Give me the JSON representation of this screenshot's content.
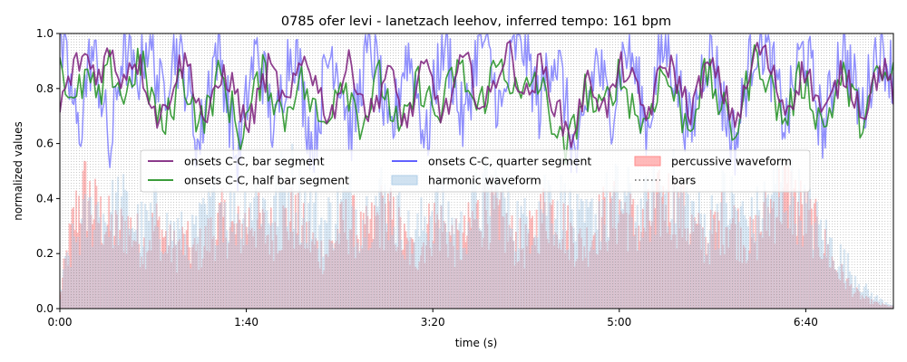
{
  "chart_data": {
    "type": "line",
    "title": "0785 ofer levi - lanetzach leehov, inferred tempo: 161 bpm",
    "xlabel": "time (s)",
    "ylabel": "normalized values",
    "xlim": [
      0,
      447
    ],
    "ylim": [
      0,
      1.0
    ],
    "x_ticks": [
      {
        "value": 0,
        "label": "0:00"
      },
      {
        "value": 100,
        "label": "1:40"
      },
      {
        "value": 200,
        "label": "3:20"
      },
      {
        "value": 300,
        "label": "5:00"
      },
      {
        "value": 400,
        "label": "6:40"
      }
    ],
    "y_ticks": [
      {
        "value": 0.0,
        "label": "0.0"
      },
      {
        "value": 0.2,
        "label": "0.2"
      },
      {
        "value": 0.4,
        "label": "0.4"
      },
      {
        "value": 0.6,
        "label": "0.6"
      },
      {
        "value": 0.8,
        "label": "0.8"
      },
      {
        "value": 1.0,
        "label": "1.0"
      }
    ],
    "bar_interval_s": 1.49,
    "series": [
      {
        "name": "onsets C-C, bar segment",
        "color": "#7b1f7b",
        "style": "line",
        "x_start": 0,
        "x_end": 447,
        "values": [
          0.73,
          0.8,
          0.86,
          0.9,
          0.92,
          0.88,
          0.85,
          0.9,
          0.93,
          0.87,
          0.84,
          0.89,
          0.92,
          0.86,
          0.8,
          0.72,
          0.68,
          0.76,
          0.83,
          0.88,
          0.9,
          0.84,
          0.75,
          0.68,
          0.72,
          0.8,
          0.86,
          0.83,
          0.77,
          0.7,
          0.66,
          0.74,
          0.81,
          0.87,
          0.84,
          0.78,
          0.72,
          0.8,
          0.88,
          0.92,
          0.86,
          0.79,
          0.73,
          0.7,
          0.78,
          0.85,
          0.89,
          0.84,
          0.76,
          0.7,
          0.74,
          0.82,
          0.87,
          0.8,
          0.72,
          0.67,
          0.75,
          0.83,
          0.88,
          0.81,
          0.74,
          0.7,
          0.77,
          0.85,
          0.9,
          0.86,
          0.79,
          0.72,
          0.76,
          0.84,
          0.9,
          0.94,
          0.88,
          0.81,
          0.76,
          0.82,
          0.89,
          0.84,
          0.77,
          0.71,
          0.66,
          0.62,
          0.7,
          0.78,
          0.84,
          0.79,
          0.72,
          0.75,
          0.82,
          0.88,
          0.86,
          0.8,
          0.74,
          0.7,
          0.77,
          0.84,
          0.9,
          0.87,
          0.82,
          0.76,
          0.72,
          0.78,
          0.85,
          0.88,
          0.84,
          0.79,
          0.73,
          0.69,
          0.74,
          0.82,
          0.92,
          0.95,
          0.9,
          0.84,
          0.78,
          0.72,
          0.77,
          0.83,
          0.87,
          0.82,
          0.76,
          0.7,
          0.74,
          0.81,
          0.86,
          0.83,
          0.78,
          0.72,
          0.75,
          0.83,
          0.88,
          0.84,
          0.79
        ]
      },
      {
        "name": "onsets C-C, half bar segment",
        "color": "#1f8f1f",
        "style": "line",
        "x_start": 0,
        "x_end": 447,
        "values": [
          0.93,
          0.82,
          0.7,
          0.78,
          0.85,
          0.8,
          0.74,
          0.81,
          0.88,
          0.83,
          0.76,
          0.82,
          0.9,
          0.86,
          0.79,
          0.72,
          0.64,
          0.7,
          0.78,
          0.85,
          0.8,
          0.73,
          0.67,
          0.72,
          0.79,
          0.85,
          0.78,
          0.71,
          0.63,
          0.68,
          0.75,
          0.82,
          0.86,
          0.8,
          0.74,
          0.69,
          0.76,
          0.84,
          0.81,
          0.75,
          0.7,
          0.66,
          0.73,
          0.8,
          0.86,
          0.8,
          0.74,
          0.68,
          0.72,
          0.79,
          0.84,
          0.77,
          0.7,
          0.62,
          0.68,
          0.76,
          0.83,
          0.79,
          0.73,
          0.69,
          0.75,
          0.82,
          0.88,
          0.84,
          0.78,
          0.72,
          0.76,
          0.83,
          0.87,
          0.9,
          0.85,
          0.79,
          0.74,
          0.8,
          0.85,
          0.8,
          0.74,
          0.68,
          0.6,
          0.56,
          0.64,
          0.73,
          0.8,
          0.75,
          0.7,
          0.73,
          0.8,
          0.85,
          0.81,
          0.76,
          0.71,
          0.66,
          0.72,
          0.8,
          0.86,
          0.82,
          0.77,
          0.71,
          0.66,
          0.73,
          0.81,
          0.85,
          0.8,
          0.74,
          0.68,
          0.64,
          0.7,
          0.79,
          0.88,
          0.92,
          0.86,
          0.8,
          0.73,
          0.68,
          0.74,
          0.81,
          0.84,
          0.78,
          0.72,
          0.66,
          0.71,
          0.79,
          0.84,
          0.8,
          0.74,
          0.69,
          0.73,
          0.8,
          0.85,
          0.82,
          0.85
        ]
      },
      {
        "name": "onsets C-C, quarter segment",
        "color": "#4b4bff",
        "style": "line",
        "x_start": 0,
        "x_end": 447,
        "values": [
          0.97,
          0.88,
          0.76,
          0.62,
          0.8,
          0.93,
          0.86,
          0.72,
          0.55,
          0.78,
          0.95,
          0.9,
          0.8,
          0.92,
          0.98,
          0.89,
          0.77,
          0.85,
          0.96,
          0.91,
          0.83,
          0.7,
          0.58,
          0.74,
          0.88,
          0.95,
          0.84,
          0.69,
          0.52,
          0.65,
          0.82,
          0.93,
          0.88,
          0.76,
          0.62,
          0.78,
          0.9,
          0.96,
          0.85,
          0.71,
          0.58,
          0.7,
          0.86,
          0.94,
          0.89,
          0.78,
          0.64,
          0.72,
          0.87,
          0.95,
          0.9,
          0.77,
          0.6,
          0.68,
          0.84,
          0.93,
          0.86,
          0.73,
          0.59,
          0.75,
          0.9,
          0.97,
          0.88,
          0.74,
          0.66,
          0.8,
          0.93,
          0.98,
          0.9,
          0.79,
          0.7,
          0.84,
          0.95,
          0.99,
          0.92,
          0.82,
          0.72,
          0.86,
          0.94,
          0.88,
          0.76,
          0.6,
          0.52,
          0.66,
          0.8,
          0.91,
          0.83,
          0.7,
          0.78,
          0.9,
          0.95,
          0.87,
          0.76,
          0.65,
          0.79,
          0.91,
          0.96,
          0.89,
          0.8,
          0.7,
          0.64,
          0.78,
          0.9,
          0.94,
          0.86,
          0.74,
          0.66,
          0.6,
          0.73,
          0.87,
          0.96,
          0.99,
          0.93,
          0.85,
          0.75,
          0.66,
          0.79,
          0.9,
          0.94,
          0.85,
          0.73,
          0.64,
          0.77,
          0.89,
          0.95,
          0.88,
          0.79,
          0.7,
          0.8,
          0.92,
          0.96,
          0.9,
          0.86
        ]
      },
      {
        "name": "harmonic waveform",
        "color": "#b0cfe8",
        "style": "fill",
        "x_start": 0,
        "x_end": 447,
        "values": [
          0.05,
          0.22,
          0.3,
          0.36,
          0.42,
          0.46,
          0.48,
          0.44,
          0.46,
          0.5,
          0.48,
          0.44,
          0.4,
          0.38,
          0.42,
          0.45,
          0.4,
          0.36,
          0.38,
          0.34,
          0.3,
          0.36,
          0.4,
          0.46,
          0.5,
          0.52,
          0.48,
          0.44,
          0.46,
          0.5,
          0.54,
          0.52,
          0.48,
          0.5,
          0.56,
          0.58,
          0.6,
          0.54,
          0.5,
          0.46,
          0.42,
          0.4,
          0.44,
          0.48,
          0.52,
          0.5,
          0.46,
          0.44,
          0.48,
          0.52,
          0.54,
          0.5,
          0.46,
          0.4,
          0.36,
          0.34,
          0.4,
          0.46,
          0.5,
          0.48,
          0.44,
          0.4,
          0.36,
          0.42,
          0.48,
          0.52,
          0.56,
          0.58,
          0.54,
          0.5,
          0.46,
          0.42,
          0.4,
          0.44,
          0.5,
          0.54,
          0.56,
          0.52,
          0.48,
          0.44,
          0.4,
          0.38,
          0.42,
          0.46,
          0.5,
          0.48,
          0.52,
          0.54,
          0.5,
          0.46,
          0.44,
          0.48,
          0.52,
          0.56,
          0.58,
          0.56,
          0.52,
          0.5,
          0.46,
          0.42,
          0.4,
          0.44,
          0.48,
          0.52,
          0.5,
          0.46,
          0.42,
          0.4,
          0.44,
          0.5,
          0.54,
          0.56,
          0.58,
          0.56,
          0.52,
          0.48,
          0.44,
          0.4,
          0.36,
          0.32,
          0.28,
          0.24,
          0.2,
          0.16,
          0.12,
          0.08,
          0.06,
          0.04,
          0.03,
          0.02
        ]
      },
      {
        "name": "percussive waveform",
        "color": "#ff8a8a",
        "style": "fill",
        "x_start": 0,
        "x_end": 447,
        "values": [
          0.06,
          0.24,
          0.4,
          0.52,
          0.56,
          0.5,
          0.44,
          0.42,
          0.38,
          0.36,
          0.4,
          0.38,
          0.34,
          0.3,
          0.36,
          0.4,
          0.36,
          0.3,
          0.28,
          0.32,
          0.3,
          0.26,
          0.3,
          0.34,
          0.38,
          0.42,
          0.4,
          0.36,
          0.38,
          0.42,
          0.44,
          0.4,
          0.36,
          0.38,
          0.4,
          0.42,
          0.44,
          0.4,
          0.36,
          0.32,
          0.28,
          0.26,
          0.3,
          0.36,
          0.4,
          0.42,
          0.38,
          0.34,
          0.38,
          0.42,
          0.46,
          0.44,
          0.4,
          0.34,
          0.28,
          0.26,
          0.3,
          0.38,
          0.42,
          0.4,
          0.36,
          0.32,
          0.3,
          0.36,
          0.42,
          0.46,
          0.48,
          0.46,
          0.42,
          0.38,
          0.34,
          0.32,
          0.3,
          0.36,
          0.42,
          0.46,
          0.48,
          0.44,
          0.4,
          0.36,
          0.32,
          0.3,
          0.34,
          0.4,
          0.44,
          0.42,
          0.46,
          0.48,
          0.44,
          0.4,
          0.38,
          0.42,
          0.46,
          0.5,
          0.52,
          0.5,
          0.46,
          0.42,
          0.38,
          0.34,
          0.32,
          0.36,
          0.4,
          0.44,
          0.42,
          0.38,
          0.34,
          0.32,
          0.36,
          0.42,
          0.48,
          0.52,
          0.56,
          0.54,
          0.5,
          0.46,
          0.42,
          0.38,
          0.32,
          0.26,
          0.2,
          0.16,
          0.12,
          0.08,
          0.06,
          0.04,
          0.03,
          0.02,
          0.015,
          0.01
        ]
      }
    ],
    "bars_legend": {
      "name": "bars",
      "color": "#606060",
      "style": "dotted"
    },
    "legend_position": "center",
    "grid": false
  }
}
